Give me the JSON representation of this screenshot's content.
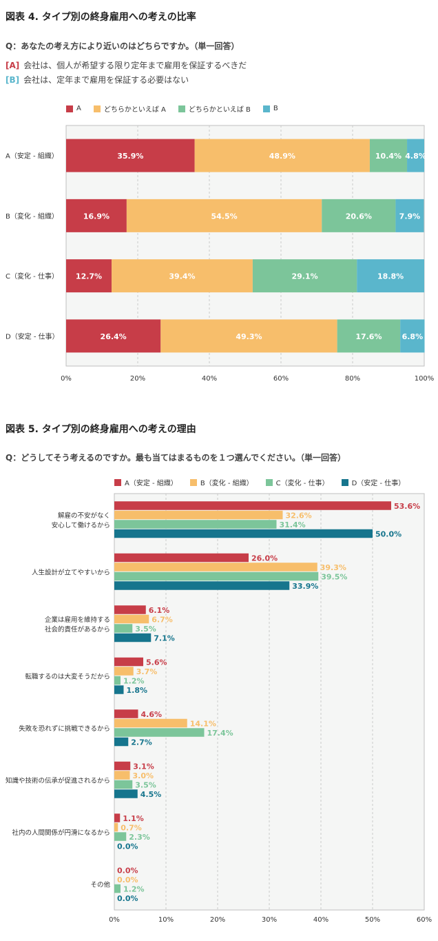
{
  "colors": {
    "red": "#c73d48",
    "orange": "#f7be6b",
    "green": "#7cc59a",
    "teal": "#16758d",
    "blue": "#5ab6cc",
    "plot_bg": "#f5f6f5",
    "grid": "#c9c9c9"
  },
  "fig4": {
    "title": "図表 4. タイプ別の終身雇用への考えの比率",
    "question": "Q：あなたの考え方により近いのはどちらですか。（単一回答）",
    "option_a_tag": "[A]",
    "option_a_text": "会社は、個人が希望する限り定年まで雇用を保証するべきだ",
    "option_b_tag": "[B]",
    "option_b_text": "会社は、定年まで雇用を保証する必要はない",
    "legend": [
      "A",
      "どちらかといえば A",
      "どちらかといえば B",
      "B"
    ]
  },
  "fig5": {
    "title": "図表 5. タイプ別の終身雇用への考えの理由",
    "question": "Q：どうしてそう考えるのですか。最も当てはまるものを１つ選んでください。（単一回答）",
    "legend": [
      "A（安定 - 組織）",
      "B（変化 - 組織）",
      "C（変化 - 仕事）",
      "D（安定 - 仕事）"
    ]
  },
  "chart_data": [
    {
      "type": "bar",
      "orientation": "horizontal",
      "stacked": true,
      "categories": [
        "A（安定 - 組織）",
        "B（変化 - 組織）",
        "C（変化 - 仕事）",
        "D（安定 - 仕事）"
      ],
      "series": [
        {
          "name": "A",
          "values": [
            35.9,
            16.9,
            12.7,
            26.4
          ],
          "labels": [
            "35.9%",
            "16.9%",
            "12.7%",
            "26.4%"
          ]
        },
        {
          "name": "どちらかといえば A",
          "values": [
            48.9,
            54.5,
            39.4,
            49.3
          ],
          "labels": [
            "48.9%",
            "54.5%",
            "39.4%",
            "49.3%"
          ]
        },
        {
          "name": "どちらかといえば B",
          "values": [
            10.4,
            20.6,
            29.1,
            17.6
          ],
          "labels": [
            "10.4%",
            "20.6%",
            "29.1%",
            "17.6%"
          ]
        },
        {
          "name": "B",
          "values": [
            4.8,
            7.9,
            18.8,
            6.8
          ],
          "labels": [
            "4.8%",
            "7.9%",
            "18.8%",
            "6.8%"
          ]
        }
      ],
      "xlim": [
        0,
        100
      ],
      "xticks": [
        "0%",
        "20%",
        "40%",
        "60%",
        "80%",
        "100%"
      ],
      "grid": true,
      "legend_position": "top-left"
    },
    {
      "type": "bar",
      "orientation": "horizontal",
      "stacked": false,
      "categories": [
        [
          "解雇の不安がなく",
          "安心して働けるから"
        ],
        [
          "人生設計が立てやすいから"
        ],
        [
          "企業は雇用を維持する",
          "社会的責任があるから"
        ],
        [
          "転職するのは大変そうだから"
        ],
        [
          "失敗を恐れずに挑戦できるから"
        ],
        [
          "知識や技術の伝承が促進されるから"
        ],
        [
          "社内の人間関係が円滑になるから"
        ],
        [
          "その他"
        ]
      ],
      "series": [
        {
          "name": "A（安定 - 組織）",
          "values": [
            53.6,
            26.0,
            6.1,
            5.6,
            4.6,
            3.1,
            1.1,
            0.0
          ],
          "labels": [
            "53.6%",
            "26.0%",
            "6.1%",
            "5.6%",
            "4.6%",
            "3.1%",
            "1.1%",
            "0.0%"
          ]
        },
        {
          "name": "B（変化 - 組織）",
          "values": [
            32.6,
            39.3,
            6.7,
            3.7,
            14.1,
            3.0,
            0.7,
            0.0
          ],
          "labels": [
            "32.6%",
            "39.3%",
            "6.7%",
            "3.7%",
            "14.1%",
            "3.0%",
            "0.7%",
            "0.0%"
          ]
        },
        {
          "name": "C（変化 - 仕事）",
          "values": [
            31.4,
            39.5,
            3.5,
            1.2,
            17.4,
            3.5,
            2.3,
            1.2
          ],
          "labels": [
            "31.4%",
            "39.5%",
            "3.5%",
            "1.2%",
            "17.4%",
            "3.5%",
            "2.3%",
            "1.2%"
          ]
        },
        {
          "name": "D（安定 - 仕事）",
          "values": [
            50.0,
            33.9,
            7.1,
            1.8,
            2.7,
            4.5,
            0.0,
            0.0
          ],
          "labels": [
            "50.0%",
            "33.9%",
            "7.1%",
            "1.8%",
            "2.7%",
            "4.5%",
            "0.0%",
            "0.0%"
          ]
        }
      ],
      "xlim": [
        0,
        60
      ],
      "xticks": [
        "0%",
        "10%",
        "20%",
        "30%",
        "40%",
        "50%",
        "60%"
      ],
      "grid": true,
      "legend_position": "top-left"
    }
  ]
}
